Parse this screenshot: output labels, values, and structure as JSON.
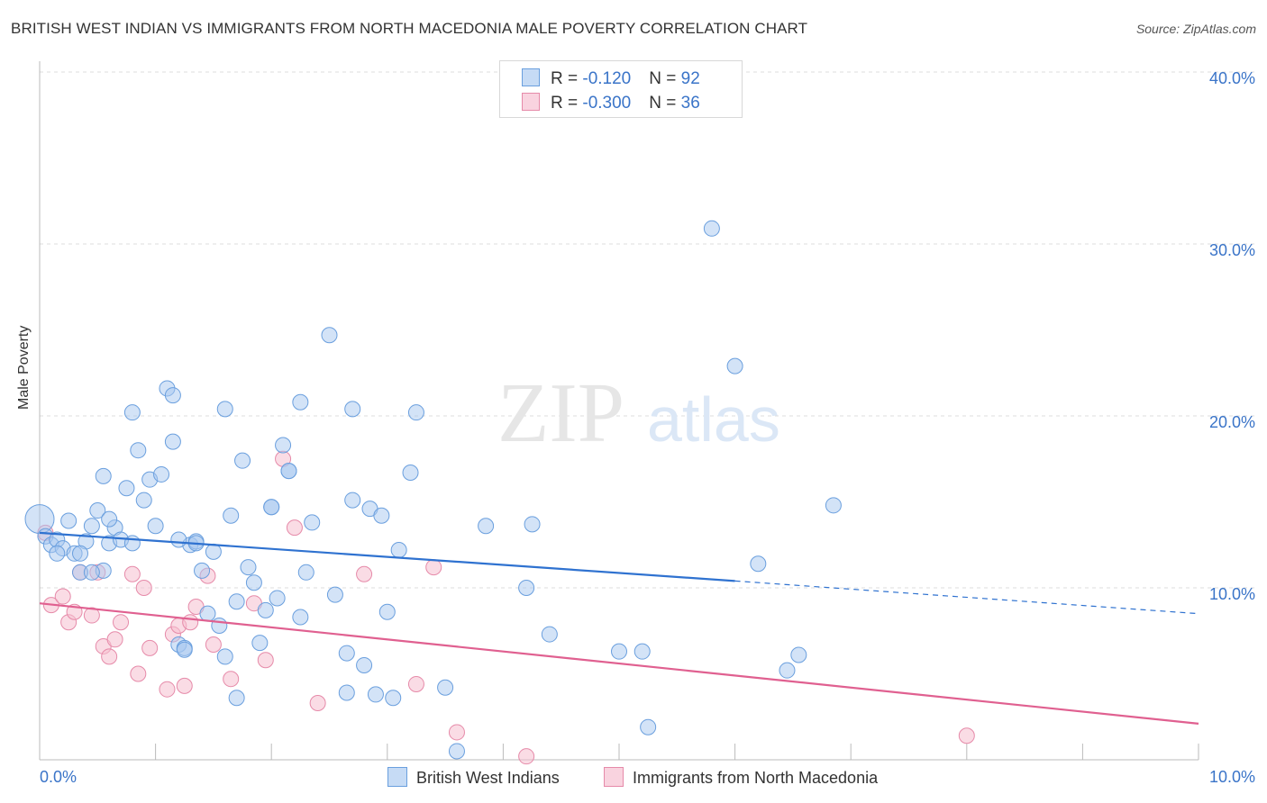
{
  "title": "BRITISH WEST INDIAN VS IMMIGRANTS FROM NORTH MACEDONIA MALE POVERTY CORRELATION CHART",
  "source": "Source: ZipAtlas.com",
  "watermark": {
    "zip": "ZIP",
    "atlas": "atlas"
  },
  "legend": {
    "rows": [
      {
        "r_label": "R = ",
        "r_value": "-0.120",
        "n_label": "N = ",
        "n_value": "92"
      },
      {
        "r_label": "R = ",
        "r_value": "-0.300",
        "n_label": "N = ",
        "n_value": "36"
      }
    ]
  },
  "colors": {
    "blue_fill": "#a8c8ef",
    "blue_stroke": "#6a9fde",
    "blue_line": "#2f72d0",
    "pink_fill": "#f6bfd0",
    "pink_stroke": "#e68aa9",
    "pink_line": "#e06090",
    "tick_label": "#3a74c8",
    "grid": "#dddddd"
  },
  "chart_data": {
    "type": "scatter",
    "title": "BRITISH WEST INDIAN VS IMMIGRANTS FROM NORTH MACEDONIA MALE POVERTY CORRELATION CHART",
    "xlabel": "",
    "ylabel": "Male Poverty",
    "xlim": [
      0,
      10
    ],
    "ylim": [
      0,
      40
    ],
    "x_tick_labels": [
      "0.0%",
      "10.0%"
    ],
    "y_ticks": [
      10,
      20,
      30,
      40
    ],
    "y_tick_labels": [
      "10.0%",
      "20.0%",
      "30.0%",
      "40.0%"
    ],
    "grid": true,
    "legend_position": "bottom-center",
    "series": [
      {
        "name": "British West Indians",
        "r": -0.12,
        "n": 92,
        "trend": {
          "x0": 0,
          "y0": 13.2,
          "x1": 6.0,
          "y1": 10.4,
          "x_dashed_end": 10,
          "y_dashed_end": 8.5
        },
        "points": [
          [
            0.0,
            14.0
          ],
          [
            0.05,
            13.0
          ],
          [
            0.1,
            12.5
          ],
          [
            0.15,
            12.8
          ],
          [
            0.2,
            12.3
          ],
          [
            0.25,
            13.9
          ],
          [
            0.3,
            12.0
          ],
          [
            0.35,
            10.9
          ],
          [
            0.4,
            12.7
          ],
          [
            0.45,
            13.6
          ],
          [
            0.5,
            14.5
          ],
          [
            0.55,
            11.0
          ],
          [
            0.6,
            12.6
          ],
          [
            0.65,
            13.5
          ],
          [
            0.7,
            12.8
          ],
          [
            0.75,
            15.8
          ],
          [
            0.8,
            20.2
          ],
          [
            0.85,
            18.0
          ],
          [
            0.9,
            15.1
          ],
          [
            0.95,
            16.3
          ],
          [
            1.0,
            13.6
          ],
          [
            1.05,
            16.6
          ],
          [
            1.1,
            21.6
          ],
          [
            1.15,
            18.5
          ],
          [
            1.2,
            6.7
          ],
          [
            1.25,
            6.5
          ],
          [
            1.3,
            12.5
          ],
          [
            1.35,
            12.7
          ],
          [
            1.4,
            11.0
          ],
          [
            1.45,
            8.5
          ],
          [
            1.5,
            12.1
          ],
          [
            1.55,
            7.8
          ],
          [
            1.6,
            6.0
          ],
          [
            1.65,
            14.2
          ],
          [
            1.7,
            9.2
          ],
          [
            1.75,
            17.4
          ],
          [
            1.8,
            11.2
          ],
          [
            1.85,
            10.3
          ],
          [
            1.9,
            6.8
          ],
          [
            1.95,
            8.7
          ],
          [
            2.0,
            14.7
          ],
          [
            2.05,
            9.4
          ],
          [
            2.1,
            18.3
          ],
          [
            2.15,
            16.8
          ],
          [
            2.25,
            8.3
          ],
          [
            2.3,
            10.9
          ],
          [
            2.35,
            13.8
          ],
          [
            2.5,
            24.7
          ],
          [
            2.55,
            9.6
          ],
          [
            2.65,
            6.2
          ],
          [
            2.7,
            15.1
          ],
          [
            2.8,
            5.5
          ],
          [
            2.85,
            14.6
          ],
          [
            2.9,
            3.8
          ],
          [
            2.95,
            14.2
          ],
          [
            3.0,
            8.6
          ],
          [
            3.05,
            3.6
          ],
          [
            3.1,
            12.2
          ],
          [
            3.2,
            16.7
          ],
          [
            3.5,
            4.2
          ],
          [
            3.6,
            0.5
          ],
          [
            3.85,
            13.6
          ],
          [
            4.2,
            10.0
          ],
          [
            4.25,
            13.7
          ],
          [
            4.4,
            7.3
          ],
          [
            3.25,
            20.2
          ],
          [
            2.25,
            20.8
          ],
          [
            2.0,
            14.7
          ],
          [
            1.2,
            12.8
          ],
          [
            0.8,
            12.6
          ],
          [
            1.15,
            21.2
          ],
          [
            1.6,
            20.4
          ],
          [
            2.7,
            20.4
          ],
          [
            0.55,
            16.5
          ],
          [
            0.15,
            12.0
          ],
          [
            0.35,
            12.0
          ],
          [
            0.45,
            10.9
          ],
          [
            0.6,
            14.0
          ],
          [
            1.35,
            12.6
          ],
          [
            1.25,
            6.4
          ],
          [
            2.15,
            16.8
          ],
          [
            1.7,
            3.6
          ],
          [
            2.65,
            3.9
          ],
          [
            5.0,
            6.3
          ],
          [
            5.25,
            1.9
          ],
          [
            5.2,
            6.3
          ],
          [
            6.0,
            22.9
          ],
          [
            6.2,
            11.4
          ],
          [
            6.45,
            5.2
          ],
          [
            6.55,
            6.1
          ],
          [
            6.85,
            14.8
          ],
          [
            5.8,
            30.9
          ]
        ]
      },
      {
        "name": "Immigrants from North Macedonia",
        "r": -0.3,
        "n": 36,
        "trend": {
          "x0": 0,
          "y0": 9.1,
          "x1": 10,
          "y1": 2.1
        },
        "points": [
          [
            0.05,
            13.2
          ],
          [
            0.1,
            9.0
          ],
          [
            0.2,
            9.5
          ],
          [
            0.25,
            8.0
          ],
          [
            0.3,
            8.6
          ],
          [
            0.35,
            10.9
          ],
          [
            0.45,
            8.4
          ],
          [
            0.5,
            10.9
          ],
          [
            0.55,
            6.6
          ],
          [
            0.6,
            6.0
          ],
          [
            0.65,
            7.0
          ],
          [
            0.7,
            8.0
          ],
          [
            0.8,
            10.8
          ],
          [
            0.85,
            5.0
          ],
          [
            0.9,
            10.0
          ],
          [
            0.95,
            6.5
          ],
          [
            1.1,
            4.1
          ],
          [
            1.15,
            7.3
          ],
          [
            1.2,
            7.8
          ],
          [
            1.25,
            4.3
          ],
          [
            1.3,
            8.0
          ],
          [
            1.35,
            8.9
          ],
          [
            1.45,
            10.7
          ],
          [
            1.5,
            6.7
          ],
          [
            1.65,
            4.7
          ],
          [
            1.85,
            9.1
          ],
          [
            1.95,
            5.8
          ],
          [
            2.1,
            17.5
          ],
          [
            2.2,
            13.5
          ],
          [
            2.4,
            3.3
          ],
          [
            2.8,
            10.8
          ],
          [
            3.25,
            4.4
          ],
          [
            3.4,
            11.2
          ],
          [
            3.6,
            1.6
          ],
          [
            4.2,
            0.2
          ],
          [
            8.0,
            1.4
          ]
        ]
      }
    ]
  }
}
